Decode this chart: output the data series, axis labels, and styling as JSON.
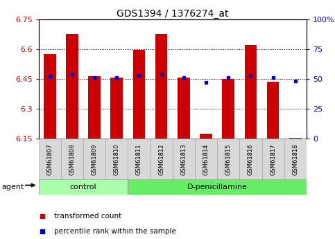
{
  "title": "GDS1394 / 1376274_at",
  "samples": [
    "GSM61807",
    "GSM61808",
    "GSM61809",
    "GSM61810",
    "GSM61811",
    "GSM61812",
    "GSM61813",
    "GSM61814",
    "GSM61815",
    "GSM61816",
    "GSM61817",
    "GSM61818"
  ],
  "transformed_count": [
    6.575,
    6.675,
    6.465,
    6.455,
    6.595,
    6.675,
    6.455,
    6.175,
    6.448,
    6.62,
    6.435,
    6.155
  ],
  "percentile_rank": [
    52,
    54,
    51,
    51,
    53,
    54,
    51,
    47,
    51,
    53,
    51,
    48
  ],
  "control_count": 4,
  "treatment_count": 8,
  "control_label": "control",
  "treatment_label": "D-penicillamine",
  "agent_label": "agent",
  "ylim_left": [
    6.15,
    6.75
  ],
  "ylim_right": [
    0,
    100
  ],
  "yticks_left": [
    6.15,
    6.3,
    6.45,
    6.6,
    6.75
  ],
  "ytick_labels_left": [
    "6.15",
    "6.3",
    "6.45",
    "6.6",
    "6.75"
  ],
  "yticks_right": [
    0,
    25,
    50,
    75,
    100
  ],
  "ytick_labels_right": [
    "0",
    "25",
    "50",
    "75",
    "100%"
  ],
  "bar_color": "#cc0000",
  "dot_color": "#0000cc",
  "bg_color": "#ffffff",
  "bar_bottom": 6.15,
  "bar_width": 0.55,
  "control_bg": "#aaffaa",
  "treatment_bg": "#66ee66",
  "left_tick_color": "#cc0000",
  "right_tick_color": "#0000cc",
  "legend_tc_color": "#cc0000",
  "legend_pr_color": "#0000cc",
  "tick_label_fontsize": 8,
  "sample_fontsize": 6,
  "agent_fontsize": 8,
  "group_fontsize": 8,
  "title_fontsize": 10,
  "legend_fontsize": 7.5
}
